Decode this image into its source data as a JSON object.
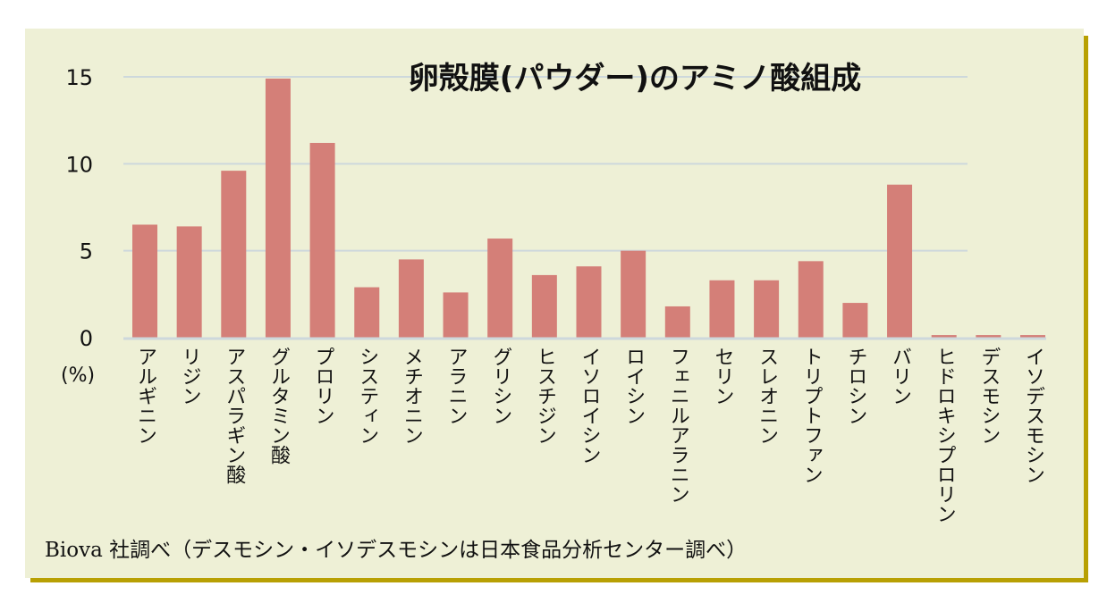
{
  "chart_data": {
    "type": "bar",
    "title": "卵殻膜(パウダー)のアミノ酸組成",
    "ylabel": "(%)",
    "xlabel": "",
    "ylim": [
      0,
      15
    ],
    "yticks": [
      0,
      5,
      10,
      15
    ],
    "grid": true,
    "bar_color": "#d47f78",
    "categories": [
      "アルギニン",
      "リジン",
      "アスパラギン酸",
      "グルタミン酸",
      "プロリン",
      "システィン",
      "メチオニン",
      "アラニン",
      "グリシン",
      "ヒスチジン",
      "イソロイシン",
      "ロイシン",
      "フェニルアラニン",
      "セリン",
      "スレオニン",
      "トリプトファン",
      "チロシン",
      "バリン",
      "ヒドロキシプロリン",
      "デスモシン",
      "イソデスモシン"
    ],
    "values": [
      6.5,
      6.4,
      9.6,
      14.9,
      11.2,
      2.9,
      4.5,
      2.6,
      5.7,
      3.6,
      4.1,
      5.0,
      1.8,
      3.3,
      3.3,
      4.4,
      2.0,
      8.8,
      0.15,
      0.15,
      0.15
    ],
    "source_note": "Biova 社調べ（デスモシン・イソデスモシンは日本食品分析センター調べ）"
  }
}
